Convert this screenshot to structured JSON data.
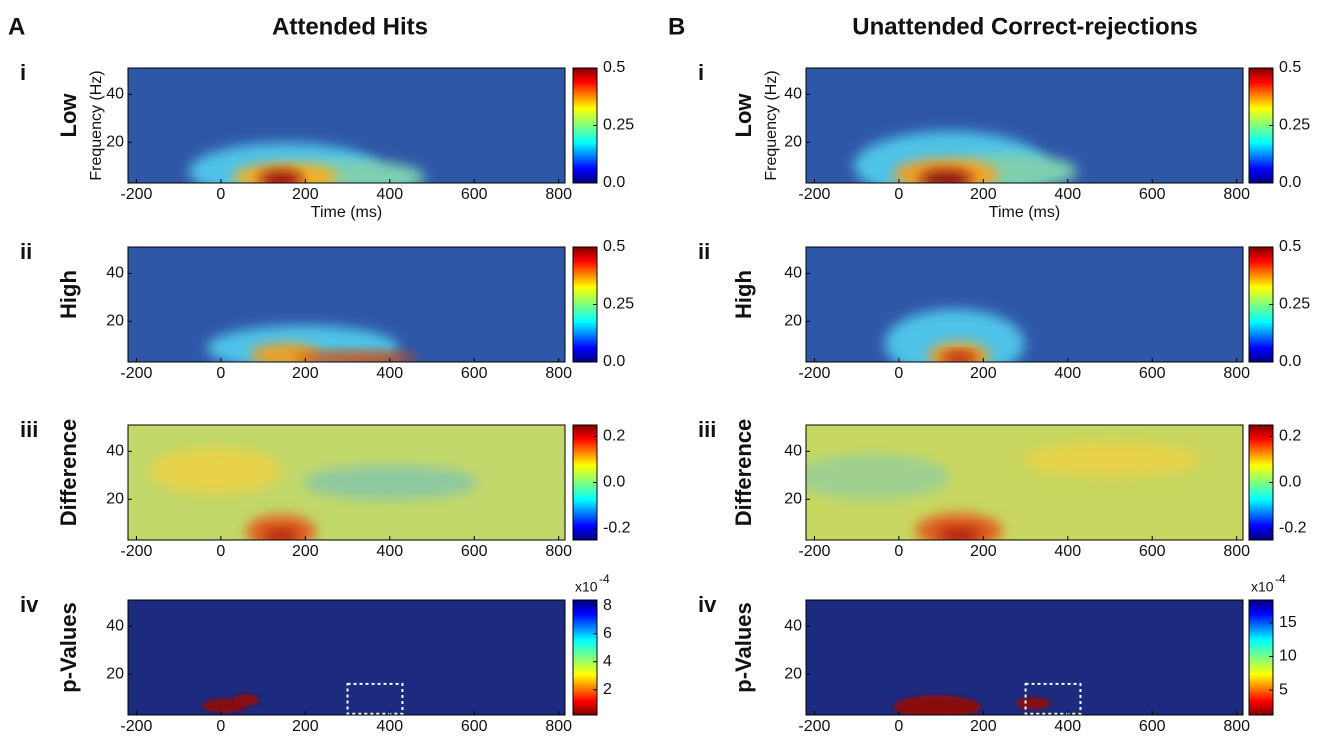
{
  "figure": {
    "panels": [
      {
        "letter": "A",
        "title": "Attended Hits"
      },
      {
        "letter": "B",
        "title": "Unattended Correct-rejections"
      }
    ]
  },
  "chart_data": [
    {
      "type": "heatmap",
      "row_numeral": "i",
      "row_label": "Low",
      "xlabel": "Time (ms)",
      "ylabel": "Frequency (Hz)",
      "colormap": "jet",
      "xlim": [
        -220,
        815
      ],
      "xticks": [
        -200,
        0,
        200,
        400,
        600,
        800
      ],
      "ylim": [
        3,
        51
      ],
      "yticks": [
        20,
        40
      ],
      "clim": [
        0,
        0.5
      ],
      "cticks": [
        0.5,
        0.25,
        {
          "value": 0,
          "label": "0.0"
        }
      ]
    },
    {
      "type": "heatmap",
      "row_numeral": "ii",
      "row_label": "High",
      "colormap": "jet",
      "xlim": [
        -220,
        815
      ],
      "xticks": [
        -200,
        0,
        200,
        400,
        600,
        800
      ],
      "ylim": [
        3,
        51
      ],
      "yticks": [
        20,
        40
      ],
      "clim": [
        0,
        0.5
      ],
      "cticks": [
        0.5,
        0.25,
        {
          "value": 0,
          "label": "0.0"
        }
      ]
    },
    {
      "type": "heatmap",
      "row_numeral": "iii",
      "row_label": "Difference",
      "colormap": "jet",
      "xlim": [
        -220,
        815
      ],
      "xticks": [
        -200,
        0,
        200,
        400,
        600,
        800
      ],
      "ylim": [
        3,
        51
      ],
      "yticks": [
        20,
        40
      ],
      "clim": [
        -0.25,
        0.25
      ],
      "cticks": [
        0.2,
        {
          "value": 0,
          "label": "0.0"
        },
        -0.2
      ]
    },
    {
      "type": "heatmap",
      "row_numeral": "iv",
      "row_label": "p-Values",
      "colormap": "jet-reversed",
      "xlim": [
        -220,
        815
      ],
      "xticks": [
        -200,
        0,
        200,
        400,
        600,
        800
      ],
      "ylim": [
        3,
        51
      ],
      "yticks": [
        20,
        40
      ],
      "clim": [
        0.2,
        8.4
      ],
      "cticks": [
        8,
        6,
        4,
        2
      ],
      "cscale_base": "x10",
      "cscale_exponent": "-4"
    },
    {
      "type": "heatmap",
      "row_numeral": "i",
      "row_label": "Low",
      "xlabel": "Time (ms)",
      "ylabel": "Frequency (Hz)",
      "colormap": "jet",
      "xlim": [
        -220,
        815
      ],
      "xticks": [
        -200,
        0,
        200,
        400,
        600,
        800
      ],
      "ylim": [
        3,
        51
      ],
      "yticks": [
        20,
        40
      ],
      "clim": [
        0,
        0.5
      ],
      "cticks": [
        0.5,
        0.25,
        {
          "value": 0,
          "label": "0.0"
        }
      ]
    },
    {
      "type": "heatmap",
      "row_numeral": "ii",
      "row_label": "High",
      "colormap": "jet",
      "xlim": [
        -220,
        815
      ],
      "xticks": [
        -200,
        0,
        200,
        400,
        600,
        800
      ],
      "ylim": [
        3,
        51
      ],
      "yticks": [
        20,
        40
      ],
      "clim": [
        0,
        0.5
      ],
      "cticks": [
        0.5,
        0.25,
        {
          "value": 0,
          "label": "0.0"
        }
      ]
    },
    {
      "type": "heatmap",
      "row_numeral": "iii",
      "row_label": "Difference",
      "colormap": "jet",
      "xlim": [
        -220,
        815
      ],
      "xticks": [
        -200,
        0,
        200,
        400,
        600,
        800
      ],
      "ylim": [
        3,
        51
      ],
      "yticks": [
        20,
        40
      ],
      "clim": [
        -0.25,
        0.25
      ],
      "cticks": [
        0.2,
        {
          "value": 0,
          "label": "0.0"
        },
        -0.2
      ]
    },
    {
      "type": "heatmap",
      "row_numeral": "iv",
      "row_label": "p-Values",
      "colormap": "jet-reversed",
      "xlim": [
        -220,
        815
      ],
      "xticks": [
        -200,
        0,
        200,
        400,
        600,
        800
      ],
      "ylim": [
        3,
        51
      ],
      "yticks": [
        20,
        40
      ],
      "clim": [
        1.3,
        18.4
      ],
      "cticks": [
        15,
        10,
        5
      ],
      "cscale_base": "x10",
      "cscale_exponent": "-4"
    }
  ]
}
